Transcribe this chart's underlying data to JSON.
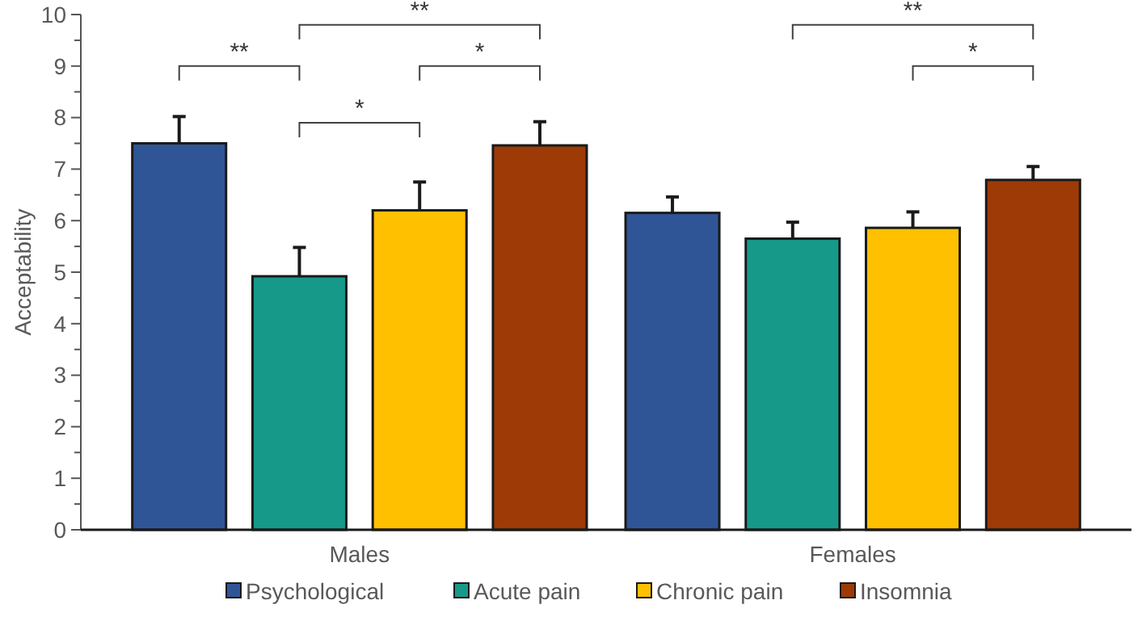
{
  "chart_data": {
    "type": "bar",
    "ylabel": "Acceptability",
    "categories": [
      "Males",
      "Females"
    ],
    "ylim": [
      0,
      10
    ],
    "yticks": [
      0,
      {
        "value": 0.5,
        "label": null
      },
      1,
      {
        "value": 1.5,
        "label": null
      },
      2,
      {
        "value": 2.5,
        "label": null
      },
      3,
      {
        "value": 3.5,
        "label": null
      },
      4,
      {
        "value": 4.5,
        "label": null
      },
      5,
      {
        "value": 5.5,
        "label": null
      },
      6,
      {
        "value": 6.5,
        "label": null
      },
      7,
      {
        "value": 7.5,
        "label": null
      },
      8,
      {
        "value": 8.5,
        "label": null
      },
      9,
      {
        "value": 9.5,
        "label": null
      },
      10
    ],
    "series": [
      {
        "name": "Psychological",
        "color": "#2f5597",
        "values": [
          7.5,
          6.15
        ],
        "errors": [
          [
            7.5,
            8.02
          ],
          [
            6.15,
            6.46
          ]
        ]
      },
      {
        "name": "Acute pain",
        "color": "#17998a",
        "values": [
          4.92,
          5.65
        ],
        "errors": [
          [
            4.92,
            5.48
          ],
          [
            5.65,
            5.97
          ]
        ]
      },
      {
        "name": "Chronic pain",
        "color": "#ffc000",
        "values": [
          6.2,
          5.86
        ],
        "errors": [
          [
            6.2,
            6.75
          ],
          [
            5.86,
            6.17
          ]
        ]
      },
      {
        "name": "Insomnia",
        "color": "#9e3a06",
        "values": [
          7.46,
          6.79
        ],
        "errors": [
          [
            7.46,
            7.92
          ],
          [
            6.79,
            7.05
          ]
        ]
      }
    ],
    "annotations": [
      "**",
      "**",
      "*",
      "*",
      "**",
      "*"
    ],
    "grid": false,
    "legend": "bottom"
  }
}
